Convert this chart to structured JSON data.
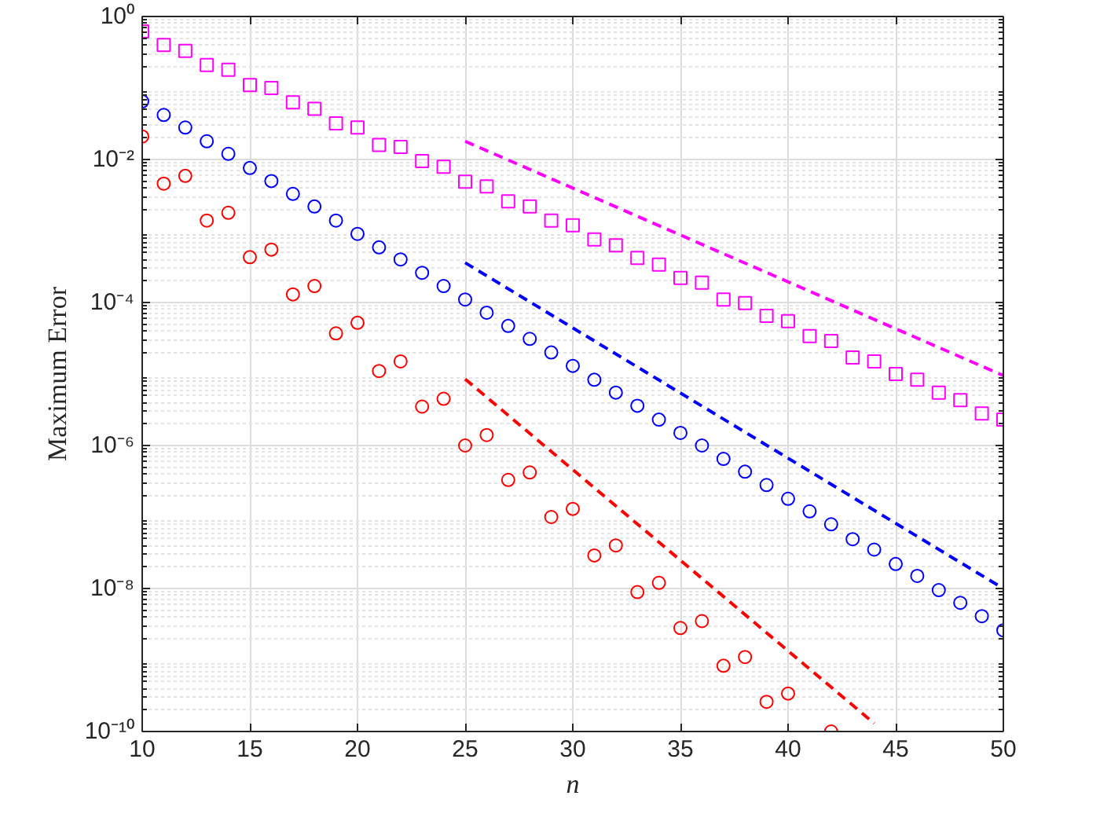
{
  "chart_data": {
    "type": "scatter",
    "xlabel": "n",
    "ylabel": "Maximum Error",
    "log": "y",
    "grid": true,
    "xlim": [
      10,
      50
    ],
    "ylim": [
      1e-10,
      1
    ],
    "xticks": [
      10,
      15,
      20,
      25,
      30,
      35,
      40,
      45,
      50
    ],
    "yticks": [
      {
        "value": 1,
        "label": "10⁰"
      },
      {
        "value": 0.01,
        "label": "10⁻²"
      },
      {
        "value": 0.0001,
        "label": "10⁻⁴"
      },
      {
        "value": 1e-06,
        "label": "10⁻⁶"
      },
      {
        "value": 1e-08,
        "label": "10⁻⁸"
      },
      {
        "value": 1e-10,
        "label": "10⁻¹⁰"
      }
    ],
    "series": [
      {
        "marker": "square",
        "color": "#ff00ff",
        "x": [
          10,
          11,
          12,
          13,
          14,
          15,
          16,
          17,
          18,
          19,
          20,
          21,
          22,
          23,
          24,
          25,
          26,
          27,
          28,
          29,
          30,
          31,
          32,
          33,
          34,
          35,
          36,
          37,
          38,
          39,
          40,
          41,
          42,
          43,
          44,
          45,
          46,
          47,
          48,
          49,
          50
        ],
        "values": [
          0.62,
          0.4,
          0.33,
          0.21,
          0.18,
          0.11,
          0.1,
          0.063,
          0.051,
          0.032,
          0.028,
          0.016,
          0.015,
          0.0095,
          0.0079,
          0.0049,
          0.0042,
          0.0026,
          0.0022,
          0.0014,
          0.0012,
          0.00076,
          0.00063,
          0.00042,
          0.00034,
          0.00022,
          0.00019,
          0.00011,
          9.8e-05,
          6.5e-05,
          5.5e-05,
          3.4e-05,
          2.9e-05,
          1.7e-05,
          1.5e-05,
          1e-05,
          8.3e-06,
          5.5e-06,
          4.3e-06,
          2.8e-06,
          2.3e-06
        ]
      },
      {
        "marker": "circle",
        "color": "#0000ff",
        "x": [
          10,
          11,
          12,
          13,
          14,
          15,
          16,
          17,
          18,
          19,
          20,
          21,
          22,
          23,
          24,
          25,
          26,
          27,
          28,
          29,
          30,
          31,
          32,
          33,
          34,
          35,
          36,
          37,
          38,
          39,
          40,
          41,
          42,
          43,
          44,
          45,
          46,
          47,
          48,
          49,
          50
        ],
        "values": [
          0.065,
          0.042,
          0.028,
          0.018,
          0.012,
          0.0076,
          0.005,
          0.0033,
          0.0022,
          0.0014,
          0.00091,
          0.00059,
          0.0004,
          0.00026,
          0.00017,
          0.00011,
          7.2e-05,
          4.7e-05,
          3.1e-05,
          2e-05,
          1.3e-05,
          8.3e-06,
          5.5e-06,
          3.6e-06,
          2.3e-06,
          1.5e-06,
          1e-06,
          6.5e-07,
          4.3e-07,
          2.8e-07,
          1.8e-07,
          1.2e-07,
          7.9e-08,
          4.9e-08,
          3.5e-08,
          2.2e-08,
          1.5e-08,
          9.5e-09,
          6.3e-09,
          4.1e-09,
          2.6e-09
        ]
      },
      {
        "marker": "circle",
        "color": "#ff0000",
        "x": [
          10,
          11,
          12,
          13,
          14,
          15,
          16,
          17,
          18,
          19,
          20,
          21,
          22,
          23,
          24,
          25,
          26,
          27,
          28,
          29,
          30,
          31,
          32,
          33,
          34,
          35,
          36,
          37,
          38,
          39,
          40,
          41,
          42
        ],
        "values": [
          0.021,
          0.0046,
          0.0059,
          0.0014,
          0.0018,
          0.00043,
          0.00055,
          0.00013,
          0.00017,
          3.7e-05,
          5.2e-05,
          1.1e-05,
          1.5e-05,
          3.5e-06,
          4.5e-06,
          1e-06,
          1.4e-06,
          3.3e-07,
          4.2e-07,
          1e-07,
          1.3e-07,
          2.9e-08,
          4e-08,
          8.9e-09,
          1.2e-08,
          2.8e-09,
          3.5e-09,
          8.3e-10,
          1.1e-09,
          2.6e-10,
          3.4e-10,
          null,
          1e-10
        ]
      },
      {
        "type": "line",
        "line_style": "dashed",
        "color": "#ff00ff",
        "x": [
          25,
          50
        ],
        "values": [
          0.018,
          9.5e-06
        ]
      },
      {
        "type": "line",
        "line_style": "dashed",
        "color": "#0000ff",
        "x": [
          25,
          50
        ],
        "values": [
          0.00036,
          1e-08
        ]
      },
      {
        "type": "line",
        "line_style": "dashed",
        "color": "#ff0000",
        "x": [
          25,
          44
        ],
        "values": [
          8.5e-06,
          1.3e-10
        ]
      }
    ]
  }
}
